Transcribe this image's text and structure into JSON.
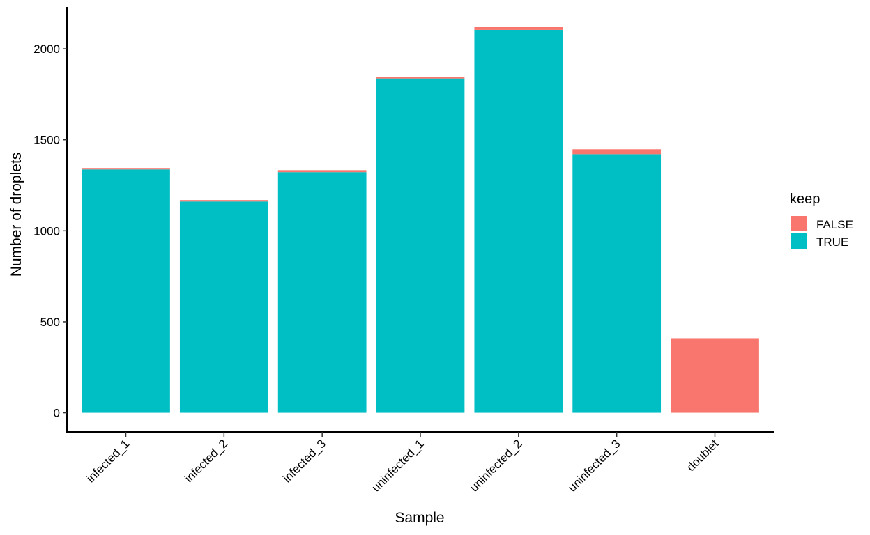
{
  "chart_data": {
    "type": "bar",
    "stacked": true,
    "title": "",
    "xlabel": "Sample",
    "ylabel": "Number of droplets",
    "categories": [
      "infected_1",
      "infected_2",
      "infected_3",
      "uninfected_1",
      "uninfected_2",
      "uninfected_3",
      "doublet"
    ],
    "series": [
      {
        "name": "FALSE",
        "color": "#F8766D",
        "values": [
          8,
          8,
          11,
          10,
          15,
          27,
          410
        ]
      },
      {
        "name": "TRUE",
        "color": "#00BFC4",
        "values": [
          1337,
          1161,
          1322,
          1837,
          2104,
          1421,
          0
        ]
      }
    ],
    "yticks": [
      0,
      500,
      1000,
      1500,
      2000
    ],
    "ylim": [
      -105,
      2230
    ],
    "grid": false,
    "legend": {
      "title": "keep",
      "position": "right",
      "entries": [
        "FALSE",
        "TRUE"
      ]
    }
  }
}
